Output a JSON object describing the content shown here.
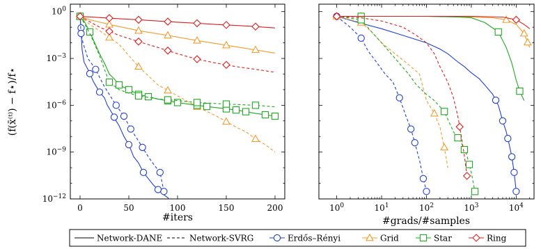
{
  "figure": {
    "ylabel": "(f(x̄⁽ᵗ⁾) − f⋆)/f⋆"
  },
  "legend": {
    "items": [
      {
        "label": "Network-DANE",
        "kind": "solid"
      },
      {
        "label": "Network-SVRG",
        "kind": "dashed"
      },
      {
        "label": "Erdős–Rényi",
        "marker": "circle",
        "color": "#1f3fd6"
      },
      {
        "label": "Grid",
        "marker": "triangle",
        "color": "#f39a2a"
      },
      {
        "label": "Star",
        "marker": "square",
        "color": "#1fa81f"
      },
      {
        "label": "Ring",
        "marker": "diamond",
        "color": "#dd1f1f"
      }
    ]
  },
  "chart_data": [
    {
      "type": "line",
      "xlabel": "#iters",
      "ylabel": "(f(x̄⁽ᵗ⁾) − f⋆)/f⋆",
      "xscale": "linear",
      "yscale": "log",
      "xlim": [
        -10,
        210
      ],
      "ylim": [
        1e-12,
        3
      ],
      "xticks": [
        0,
        50,
        100,
        150,
        200
      ],
      "xticklabels": [
        "0",
        "50",
        "100",
        "150",
        "200"
      ],
      "yticks": [
        1e-12,
        1e-09,
        1e-06,
        0.001,
        1
      ],
      "yticklabels": [
        "10^-12",
        "10^-9",
        "10^-6",
        "10^-3",
        "10^0"
      ],
      "series": [
        {
          "name": "Network-DANE",
          "graph": "Erdős–Rényi",
          "color": "#1f3fd6",
          "dash": false,
          "marker": "circle",
          "x": [
            0,
            1,
            2,
            4,
            8,
            14,
            20,
            25,
            28,
            33,
            37,
            40,
            45,
            50,
            55,
            60,
            65,
            70,
            75,
            80,
            85,
            90,
            95,
            100,
            105
          ],
          "y": [
            0.5,
            0.09,
            0.004,
            0.0006,
            0.0002,
            3e-05,
            7e-06,
            3e-06,
            1e-06,
            3e-07,
            1e-07,
            5e-08,
            1e-08,
            3e-09,
            5e-10,
            2e-10,
            5e-11,
            2e-11,
            8e-12,
            4e-12,
            2e-12,
            1.2e-12,
            6e-13,
            3e-13,
            2.5e-13
          ],
          "marker_x": [
            0,
            1,
            10,
            20,
            35,
            50,
            65,
            80,
            95,
            105
          ]
        },
        {
          "name": "Network-SVRG",
          "graph": "Erdős–Rényi",
          "color": "#1f3fd6",
          "dash": true,
          "marker": "circle",
          "x": [
            0,
            1,
            3,
            8,
            16,
            24,
            30,
            37,
            45,
            52,
            58,
            64,
            70,
            76,
            82,
            86
          ],
          "y": [
            0.5,
            0.04,
            0.01,
            0.001,
            0.0002,
            2e-05,
            5e-06,
            1e-06,
            2e-07,
            3e-08,
            8e-09,
            2e-09,
            5e-10,
            1.5e-10,
            5e-11,
            3e-12
          ],
          "marker_x": [
            1,
            16,
            37,
            45,
            52,
            64,
            82,
            86
          ]
        },
        {
          "name": "Network-DANE",
          "graph": "Grid",
          "color": "#f39a2a",
          "dash": false,
          "marker": "triangle",
          "x": [
            0,
            10,
            30,
            60,
            90,
            120,
            150,
            180,
            200
          ],
          "y": [
            0.5,
            0.3,
            0.15,
            0.06,
            0.03,
            0.014,
            0.007,
            0.0035,
            0.0022
          ],
          "marker_x": [
            0,
            30,
            60,
            90,
            120,
            150,
            180
          ]
        },
        {
          "name": "Network-SVRG",
          "graph": "Grid",
          "color": "#f39a2a",
          "dash": true,
          "marker": "triangle",
          "x": [
            0,
            10,
            20,
            40,
            60,
            80,
            100,
            120,
            140,
            150,
            160,
            170,
            180,
            190,
            200
          ],
          "y": [
            0.5,
            0.15,
            0.06,
            0.008,
            0.0003,
            2e-05,
            4e-06,
            8e-07,
            2e-07,
            9e-08,
            4e-08,
            2e-08,
            7e-09,
            3e-09,
            1e-09
          ],
          "marker_x": [
            0,
            30,
            60,
            90,
            120,
            150,
            180
          ]
        },
        {
          "name": "Network-DANE",
          "graph": "Star",
          "color": "#1fa81f",
          "dash": false,
          "marker": "square",
          "x": [
            0,
            5,
            10,
            15,
            20,
            25,
            30,
            35,
            40,
            50,
            60,
            80,
            100,
            120,
            140,
            160,
            180,
            200
          ],
          "y": [
            0.5,
            0.2,
            0.05,
            0.01,
            0.002,
            0.0005,
            0.0001,
            5e-05,
            2e-05,
            1e-05,
            5e-06,
            2.5e-06,
            1.5e-06,
            1e-06,
            7e-07,
            5e-07,
            3e-07,
            2e-07
          ],
          "marker_x": [
            0,
            10,
            40,
            50,
            60,
            70,
            90,
            100,
            120,
            130,
            150,
            160,
            170,
            190,
            200
          ]
        },
        {
          "name": "Network-SVRG",
          "graph": "Star",
          "color": "#1fa81f",
          "dash": true,
          "marker": "square",
          "x": [
            0,
            5,
            10,
            15,
            20,
            25,
            30,
            40,
            50,
            60,
            80,
            100,
            120,
            150,
            180,
            200
          ],
          "y": [
            0.5,
            0.15,
            0.04,
            0.008,
            0.0015,
            0.0002,
            3e-05,
            1e-05,
            6e-06,
            4e-06,
            2.5e-06,
            2e-06,
            1.5e-06,
            1.2e-06,
            1e-06,
            8e-07
          ],
          "marker_x": [
            0,
            30,
            60,
            90,
            120,
            150,
            180
          ]
        },
        {
          "name": "Network-DANE",
          "graph": "Ring",
          "color": "#dd1f1f",
          "dash": false,
          "marker": "diamond",
          "x": [
            0,
            20,
            40,
            60,
            80,
            100,
            120,
            140,
            160,
            180,
            200
          ],
          "y": [
            0.5,
            0.42,
            0.35,
            0.3,
            0.25,
            0.21,
            0.18,
            0.15,
            0.13,
            0.11,
            0.09
          ],
          "marker_x": [
            0,
            30,
            60,
            90,
            120,
            150,
            180
          ]
        },
        {
          "name": "Network-SVRG",
          "graph": "Ring",
          "color": "#dd1f1f",
          "dash": true,
          "marker": "diamond",
          "x": [
            0,
            20,
            40,
            60,
            80,
            100,
            120,
            140,
            160,
            180,
            200
          ],
          "y": [
            0.5,
            0.1,
            0.03,
            0.012,
            0.005,
            0.002,
            0.0009,
            0.0005,
            0.0003,
            0.0002,
            0.00013
          ],
          "marker_x": [
            0,
            30,
            60,
            90,
            120,
            150
          ]
        }
      ]
    },
    {
      "type": "line",
      "xlabel": "#grads/#samples",
      "xscale": "log",
      "yscale": "log",
      "xlim": [
        0.4,
        25000
      ],
      "ylim": [
        1e-12,
        3
      ],
      "xticks": [
        1,
        10,
        100,
        1000,
        10000
      ],
      "xticklabels": [
        "10^0",
        "10^1",
        "10^2",
        "10^3",
        "10^4"
      ],
      "yticks": [
        1e-12,
        1e-09,
        1e-06,
        0.001,
        1
      ],
      "series": [
        {
          "name": "Network-DANE",
          "graph": "Erdős–Rényi",
          "color": "#1f3fd6",
          "dash": false,
          "marker": "circle",
          "x": [
            1,
            3,
            10,
            30,
            100,
            200,
            300,
            500,
            700,
            1000,
            1500,
            2000,
            3000,
            4000,
            5000,
            6000,
            7000,
            8000,
            9000,
            10000
          ],
          "y": [
            0.5,
            0.2,
            0.08,
            0.03,
            0.01,
            0.004,
            0.002,
            0.0006,
            0.0003,
            0.00012,
            5e-05,
            2e-05,
            5e-06,
            1e-06,
            1e-07,
            2e-08,
            3e-09,
            5e-10,
            5e-11,
            3e-12
          ],
          "marker_x": [
            1,
            3500,
            5000,
            6500,
            8000,
            9000,
            10000
          ]
        },
        {
          "name": "Network-SVRG",
          "graph": "Erdős–Rényi",
          "color": "#1f3fd6",
          "dash": true,
          "marker": "circle",
          "x": [
            1,
            2,
            3.5,
            5,
            8,
            12,
            18,
            25,
            35,
            45,
            55,
            70,
            85,
            100
          ],
          "y": [
            0.5,
            0.1,
            0.02,
            0.003,
            0.0005,
            0.0001,
            3e-05,
            3e-06,
            2e-07,
            3e-08,
            4e-09,
            3e-10,
            2e-11,
            3e-12
          ],
          "marker_x": [
            1,
            3.5,
            25,
            45,
            55,
            85,
            100
          ]
        },
        {
          "name": "Network-DANE",
          "graph": "Grid",
          "color": "#f39a2a",
          "dash": false,
          "marker": "triangle",
          "x": [
            1,
            10,
            100,
            1000,
            3000,
            6000,
            10000,
            15000,
            20000
          ],
          "y": [
            0.5,
            0.5,
            0.5,
            0.45,
            0.4,
            0.3,
            0.15,
            0.04,
            0.005
          ],
          "marker_x": [
            3.5,
            6000,
            15000,
            18000
          ]
        },
        {
          "name": "Network-SVRG",
          "graph": "Grid",
          "color": "#f39a2a",
          "dash": true,
          "marker": "triangle",
          "x": [
            1,
            3.5,
            6,
            10,
            20,
            40,
            70,
            100,
            150,
            200,
            250,
            300
          ],
          "y": [
            0.5,
            0.2,
            0.05,
            0.01,
            0.002,
            0.0004,
            0.0001,
            2e-06,
            3e-07,
            4e-08,
            2e-09,
            1e-10
          ],
          "marker_x": [
            1,
            3.5,
            150,
            250
          ]
        },
        {
          "name": "Network-DANE",
          "graph": "Star",
          "color": "#1fa81f",
          "dash": false,
          "marker": "square",
          "x": [
            1,
            10,
            100,
            500,
            1000,
            2000,
            4000,
            6000,
            8000,
            10000,
            12000,
            15000
          ],
          "y": [
            0.5,
            0.5,
            0.5,
            0.45,
            0.4,
            0.2,
            0.05,
            0.005,
            0.0005,
            4e-05,
            8e-06,
            2e-06
          ],
          "marker_x": [
            3.5,
            4000,
            12000
          ]
        },
        {
          "name": "Network-SVRG",
          "graph": "Star",
          "color": "#1fa81f",
          "dash": true,
          "marker": "square",
          "x": [
            1,
            3.5,
            6,
            10,
            20,
            40,
            60,
            100,
            150,
            250,
            400,
            600,
            800,
            1000,
            1200
          ],
          "y": [
            0.5,
            0.3,
            0.05,
            0.01,
            0.001,
            0.0001,
            2e-05,
            5e-06,
            2e-06,
            4e-07,
            2e-08,
            4e-09,
            6e-10,
            5e-11,
            3e-12
          ],
          "marker_x": [
            3.5,
            250,
            500,
            700,
            900,
            1200
          ]
        },
        {
          "name": "Network-DANE",
          "graph": "Ring",
          "color": "#dd1f1f",
          "dash": false,
          "marker": "diamond",
          "x": [
            1,
            10,
            100,
            1000,
            5000,
            10000,
            15000,
            20000
          ],
          "y": [
            0.5,
            0.5,
            0.5,
            0.5,
            0.45,
            0.3,
            0.15,
            0.08
          ],
          "marker_x": [
            1,
            10000
          ]
        },
        {
          "name": "Network-SVRG",
          "graph": "Ring",
          "color": "#dd1f1f",
          "dash": true,
          "marker": "diamond",
          "x": [
            1,
            3.5,
            10,
            30,
            60,
            100,
            150,
            200,
            300,
            400,
            500,
            600,
            700,
            800
          ],
          "y": [
            0.5,
            0.4,
            0.25,
            0.1,
            0.03,
            0.01,
            0.002,
            0.0003,
            3e-05,
            3e-06,
            2e-07,
            1e-08,
            6e-10,
            3e-11
          ],
          "marker_x": [
            1,
            550,
            800
          ]
        }
      ]
    }
  ]
}
